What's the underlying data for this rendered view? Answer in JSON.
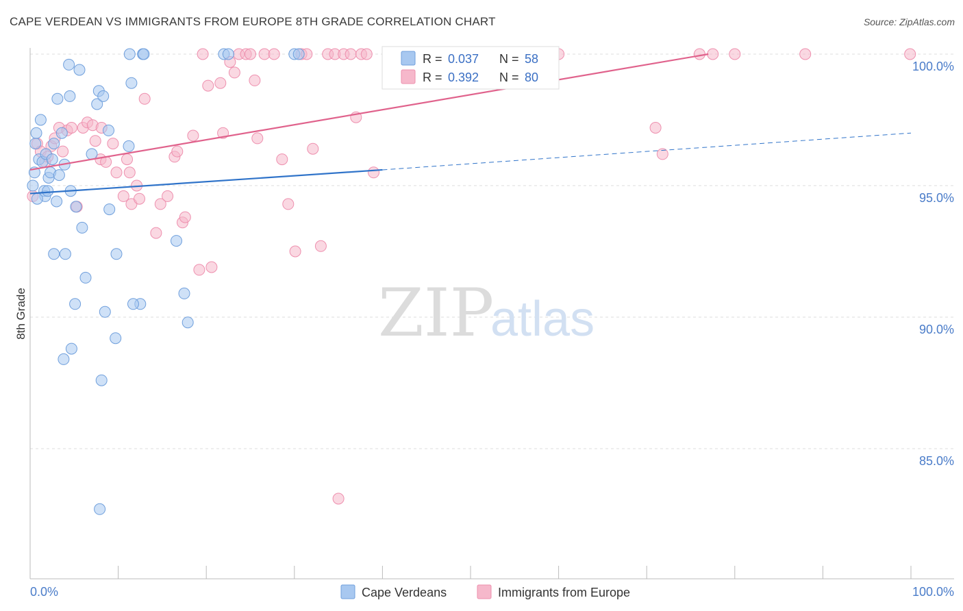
{
  "title": "CAPE VERDEAN VS IMMIGRANTS FROM EUROPE 8TH GRADE CORRELATION CHART",
  "source": "Source: ZipAtlas.com",
  "watermark": {
    "zip": "ZIP",
    "atlas": "atlas"
  },
  "colors": {
    "blue_fill": "#a8c8f0",
    "blue_stroke": "#6f9fdc",
    "blue_line": "#2f73c9",
    "pink_fill": "#f6b8cb",
    "pink_stroke": "#ee8fae",
    "pink_line": "#e0628c",
    "grid": "#dddddd",
    "tick_text": "#4a7cc9"
  },
  "legend": {
    "rows": [
      {
        "r_label": "R =",
        "r_value": "0.037",
        "n_label": "N =",
        "n_value": "58",
        "color": "blue"
      },
      {
        "r_label": "R =",
        "r_value": "0.392",
        "n_label": "N =",
        "n_value": "80",
        "color": "pink"
      }
    ]
  },
  "bottom_legend": [
    "Cape Verdeans",
    "Immigrants from Europe"
  ],
  "chart_data": {
    "type": "scatter",
    "title": "CAPE VERDEAN VS IMMIGRANTS FROM EUROPE 8TH GRADE CORRELATION CHART",
    "xlabel": "",
    "ylabel": "8th Grade",
    "xlim": [
      0,
      100
    ],
    "ylim": [
      80.0,
      100.3
    ],
    "x_tick_labels": [
      "0.0%",
      "100.0%"
    ],
    "y_ticks": [
      85.0,
      90.0,
      95.0,
      100.0
    ],
    "y_tick_labels": [
      "85.0%",
      "90.0%",
      "95.0%",
      "100.0%"
    ],
    "grid": true,
    "legend_placement": "top-center",
    "series": [
      {
        "name": "Cape Verdeans",
        "color": "blue",
        "trend": {
          "x": [
            0,
            40
          ],
          "y": [
            94.7,
            95.6
          ],
          "dashed_to": [
            100,
            97.0
          ]
        },
        "points": [
          [
            0.3,
            95.0
          ],
          [
            0.5,
            95.5
          ],
          [
            0.6,
            96.6
          ],
          [
            0.7,
            97.0
          ],
          [
            1.0,
            96.0
          ],
          [
            1.2,
            97.5
          ],
          [
            1.4,
            95.9
          ],
          [
            1.6,
            94.8
          ],
          [
            1.7,
            94.6
          ],
          [
            1.8,
            96.2
          ],
          [
            2.0,
            94.8
          ],
          [
            2.1,
            95.3
          ],
          [
            2.3,
            95.5
          ],
          [
            2.5,
            96.0
          ],
          [
            2.7,
            96.6
          ],
          [
            3.0,
            94.4
          ],
          [
            3.1,
            98.3
          ],
          [
            3.3,
            95.4
          ],
          [
            3.6,
            97.0
          ],
          [
            3.9,
            95.8
          ],
          [
            4.5,
            98.4
          ],
          [
            4.6,
            94.8
          ],
          [
            4.4,
            99.6
          ],
          [
            5.2,
            94.2
          ],
          [
            5.6,
            99.4
          ],
          [
            5.9,
            93.4
          ],
          [
            6.3,
            91.5
          ],
          [
            4.7,
            88.8
          ],
          [
            4.0,
            92.4
          ],
          [
            2.7,
            92.4
          ],
          [
            5.1,
            90.5
          ],
          [
            3.8,
            88.4
          ],
          [
            7.0,
            96.2
          ],
          [
            7.6,
            98.1
          ],
          [
            7.8,
            98.6
          ],
          [
            8.3,
            98.4
          ],
          [
            8.9,
            97.1
          ],
          [
            9.0,
            94.1
          ],
          [
            9.8,
            92.4
          ],
          [
            8.5,
            90.2
          ],
          [
            9.7,
            89.2
          ],
          [
            8.1,
            87.6
          ],
          [
            11.2,
            96.5
          ],
          [
            11.5,
            98.9
          ],
          [
            11.3,
            100.0
          ],
          [
            12.8,
            100.0
          ],
          [
            12.9,
            100.0
          ],
          [
            12.5,
            90.5
          ],
          [
            11.7,
            90.5
          ],
          [
            16.6,
            92.9
          ],
          [
            17.5,
            90.9
          ],
          [
            17.9,
            89.8
          ],
          [
            22.0,
            100.0
          ],
          [
            22.5,
            100.0
          ],
          [
            30.0,
            100.0
          ],
          [
            30.5,
            100.0
          ],
          [
            7.9,
            82.7
          ],
          [
            0.8,
            94.5
          ]
        ]
      },
      {
        "name": "Immigrants from Europe",
        "color": "pink",
        "trend": {
          "x": [
            0,
            77
          ],
          "y": [
            95.6,
            100.0
          ]
        },
        "points": [
          [
            0.3,
            94.6
          ],
          [
            0.8,
            96.6
          ],
          [
            1.2,
            96.3
          ],
          [
            1.7,
            95.9
          ],
          [
            2.0,
            96.1
          ],
          [
            2.4,
            96.5
          ],
          [
            2.8,
            96.8
          ],
          [
            3.3,
            97.2
          ],
          [
            3.7,
            96.3
          ],
          [
            4.2,
            97.1
          ],
          [
            4.7,
            97.2
          ],
          [
            5.3,
            94.2
          ],
          [
            6.0,
            97.2
          ],
          [
            6.5,
            97.4
          ],
          [
            7.1,
            97.3
          ],
          [
            7.4,
            96.7
          ],
          [
            8.0,
            96.0
          ],
          [
            8.1,
            97.2
          ],
          [
            8.6,
            95.9
          ],
          [
            9.4,
            96.6
          ],
          [
            9.8,
            95.5
          ],
          [
            10.6,
            94.6
          ],
          [
            11.0,
            96.0
          ],
          [
            11.3,
            95.5
          ],
          [
            11.5,
            94.3
          ],
          [
            12.1,
            95.0
          ],
          [
            12.4,
            94.5
          ],
          [
            13.0,
            98.3
          ],
          [
            14.3,
            93.2
          ],
          [
            14.8,
            94.3
          ],
          [
            15.6,
            94.6
          ],
          [
            16.4,
            96.1
          ],
          [
            16.7,
            96.3
          ],
          [
            17.3,
            93.6
          ],
          [
            17.6,
            93.8
          ],
          [
            18.5,
            96.9
          ],
          [
            19.2,
            91.8
          ],
          [
            19.6,
            100.0
          ],
          [
            20.2,
            98.8
          ],
          [
            20.6,
            91.9
          ],
          [
            21.6,
            98.9
          ],
          [
            21.9,
            97.0
          ],
          [
            22.7,
            99.7
          ],
          [
            23.2,
            99.3
          ],
          [
            23.7,
            100.0
          ],
          [
            24.5,
            100.0
          ],
          [
            25.5,
            99.0
          ],
          [
            25.0,
            100.0
          ],
          [
            25.8,
            96.8
          ],
          [
            26.6,
            100.0
          ],
          [
            27.7,
            100.0
          ],
          [
            28.6,
            96.0
          ],
          [
            29.3,
            94.3
          ],
          [
            30.1,
            92.5
          ],
          [
            30.8,
            100.0
          ],
          [
            31.4,
            100.0
          ],
          [
            32.1,
            96.4
          ],
          [
            33.0,
            92.7
          ],
          [
            33.8,
            100.0
          ],
          [
            34.6,
            100.0
          ],
          [
            35.0,
            83.1
          ],
          [
            35.6,
            100.0
          ],
          [
            36.4,
            100.0
          ],
          [
            37.0,
            97.6
          ],
          [
            37.6,
            100.0
          ],
          [
            38.2,
            100.0
          ],
          [
            39.0,
            95.5
          ],
          [
            42.0,
            100.0
          ],
          [
            47.0,
            100.0
          ],
          [
            52.0,
            100.0
          ],
          [
            56.0,
            100.0
          ],
          [
            58.0,
            100.0
          ],
          [
            60.0,
            100.0
          ],
          [
            71.0,
            97.2
          ],
          [
            71.8,
            96.2
          ],
          [
            76.0,
            100.0
          ],
          [
            77.5,
            100.0
          ],
          [
            80.0,
            100.0
          ],
          [
            88.0,
            100.0
          ],
          [
            99.9,
            100.0
          ]
        ]
      }
    ]
  }
}
